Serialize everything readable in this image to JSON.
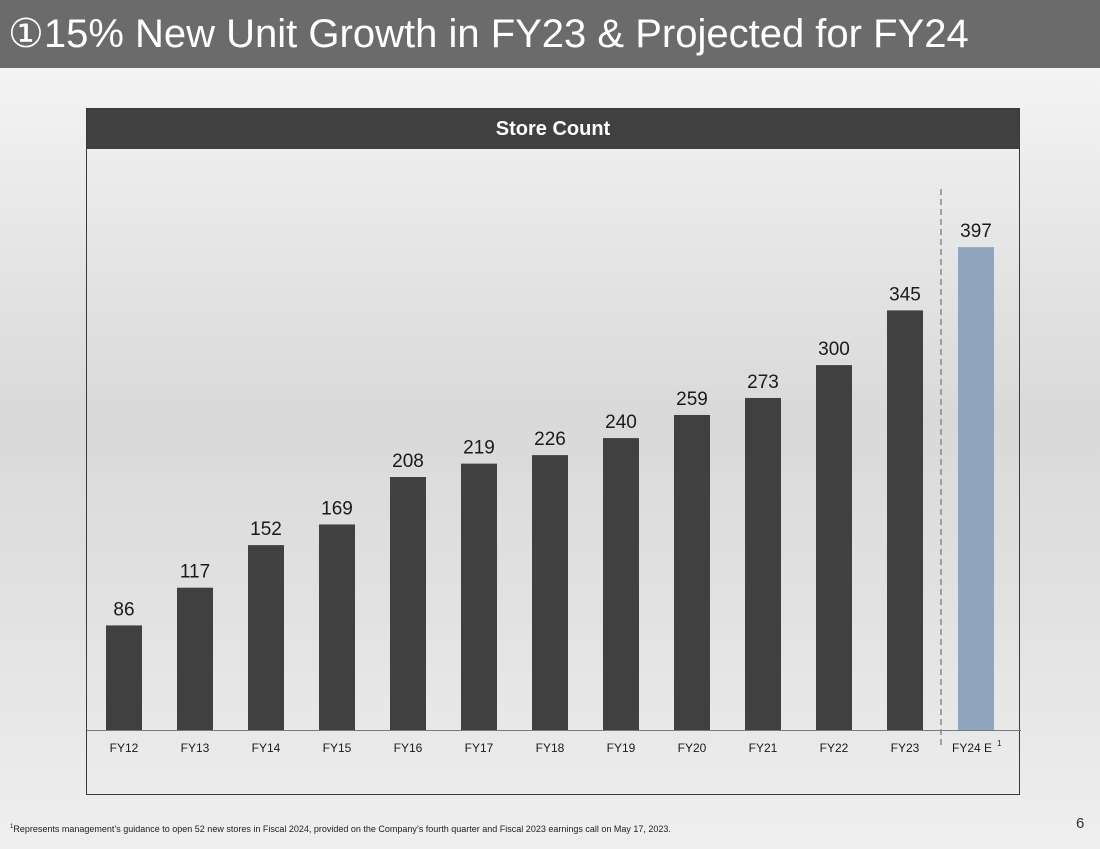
{
  "page": {
    "title": "①15% New Unit Growth in FY23 & Projected for FY24",
    "footnote_mark": "1",
    "footnote_text": "Represents management’s guidance to open 52 new stores in Fiscal 2024, provided on the Company’s fourth quarter and Fiscal 2023 earnings call on May 17, 2023.",
    "page_number": "6"
  },
  "chart_data": {
    "type": "bar",
    "title": "Store Count",
    "categories": [
      "FY12",
      "FY13",
      "FY14",
      "FY15",
      "FY16",
      "FY17",
      "FY18",
      "FY19",
      "FY20",
      "FY21",
      "FY22",
      "FY23",
      "FY24 E"
    ],
    "values": [
      86,
      117,
      152,
      169,
      208,
      219,
      226,
      240,
      259,
      273,
      300,
      345,
      397
    ],
    "projected_index": 12,
    "projected_superscript": "1",
    "xlabel": "",
    "ylabel": "",
    "ylim": [
      0,
      430
    ],
    "grid": false,
    "colors": {
      "actual": "#404040",
      "projected": "#8fa5bd",
      "divider": "#7f8a95"
    }
  }
}
